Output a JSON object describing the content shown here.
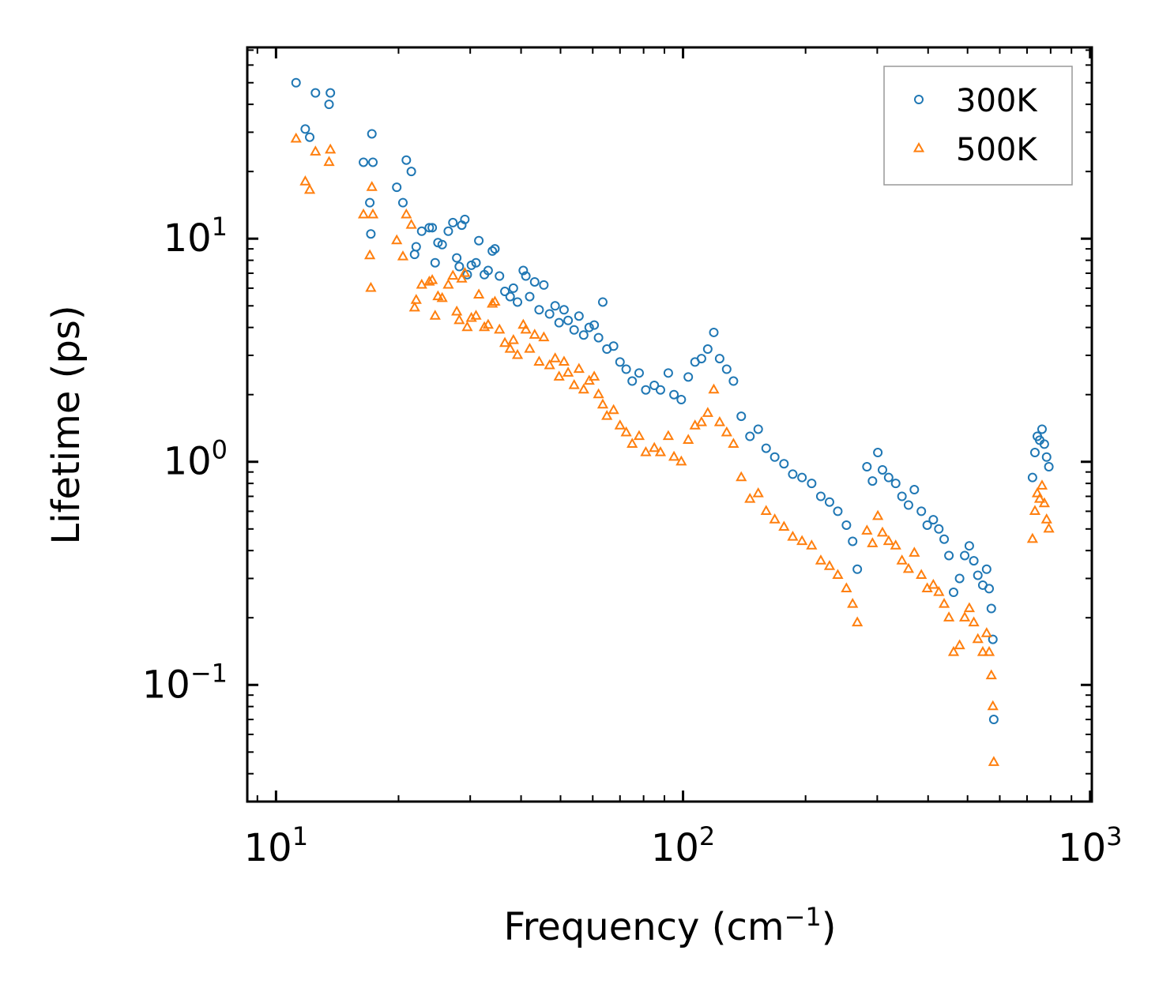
{
  "chart_data": {
    "type": "scatter",
    "xscale": "log",
    "yscale": "log",
    "xlabel": "Frequency (cm",
    "xlabel_sup": "−1",
    "xlabel_end": ")",
    "ylabel": "Lifetime (ps)",
    "xlim": [
      8.5,
      1010
    ],
    "ylim": [
      0.03,
      72
    ],
    "xticks": [
      {
        "value": 10,
        "base": "10",
        "exp": "1"
      },
      {
        "value": 100,
        "base": "10",
        "exp": "2"
      },
      {
        "value": 1000,
        "base": "10",
        "exp": "3"
      }
    ],
    "yticks": [
      {
        "value": 0.1,
        "base": "10",
        "exp": "−1"
      },
      {
        "value": 1,
        "base": "10",
        "exp": "0"
      },
      {
        "value": 10,
        "base": "10",
        "exp": "1"
      }
    ],
    "legend": {
      "position": "top-right"
    },
    "series": [
      {
        "name": "300K",
        "marker": "circle",
        "color": "#1f77b4",
        "points": [
          [
            11.2,
            50
          ],
          [
            11.8,
            31
          ],
          [
            12.1,
            28.5
          ],
          [
            12.5,
            45
          ],
          [
            13.5,
            40
          ],
          [
            13.6,
            45
          ],
          [
            16.4,
            22
          ],
          [
            17.0,
            14.5
          ],
          [
            17.1,
            10.5
          ],
          [
            17.2,
            29.5
          ],
          [
            17.3,
            22
          ],
          [
            19.8,
            17
          ],
          [
            20.5,
            14.5
          ],
          [
            20.9,
            22.5
          ],
          [
            21.5,
            20
          ],
          [
            21.9,
            8.5
          ],
          [
            22.1,
            9.2
          ],
          [
            22.8,
            10.8
          ],
          [
            23.8,
            11.2
          ],
          [
            24.2,
            11.2
          ],
          [
            24.6,
            7.8
          ],
          [
            25.0,
            9.6
          ],
          [
            25.6,
            9.4
          ],
          [
            26.5,
            10.8
          ],
          [
            27.2,
            11.8
          ],
          [
            27.8,
            8.2
          ],
          [
            28.2,
            7.5
          ],
          [
            28.6,
            11.5
          ],
          [
            29.1,
            12.2
          ],
          [
            29.5,
            6.9
          ],
          [
            30.2,
            7.6
          ],
          [
            31.0,
            7.8
          ],
          [
            31.5,
            9.8
          ],
          [
            32.5,
            6.9
          ],
          [
            33.2,
            7.2
          ],
          [
            34.0,
            8.8
          ],
          [
            34.5,
            9.0
          ],
          [
            35.4,
            6.8
          ],
          [
            36.5,
            5.8
          ],
          [
            37.6,
            5.5
          ],
          [
            38.3,
            6.0
          ],
          [
            39.2,
            5.2
          ],
          [
            40.5,
            7.2
          ],
          [
            41.1,
            6.8
          ],
          [
            42.0,
            5.5
          ],
          [
            43.2,
            6.4
          ],
          [
            44.3,
            4.8
          ],
          [
            45.5,
            6.2
          ],
          [
            47.0,
            4.6
          ],
          [
            48.5,
            5.0
          ],
          [
            49.6,
            4.2
          ],
          [
            51.0,
            4.8
          ],
          [
            52.2,
            4.3
          ],
          [
            54.0,
            3.9
          ],
          [
            55.5,
            4.5
          ],
          [
            57.0,
            3.7
          ],
          [
            58.8,
            4.0
          ],
          [
            60.5,
            4.1
          ],
          [
            62.0,
            3.6
          ],
          [
            63.5,
            5.2
          ],
          [
            65.0,
            3.2
          ],
          [
            67.5,
            3.3
          ],
          [
            70.0,
            2.8
          ],
          [
            72.5,
            2.6
          ],
          [
            75.0,
            2.3
          ],
          [
            78.0,
            2.5
          ],
          [
            81.0,
            2.1
          ],
          [
            85.0,
            2.2
          ],
          [
            88.0,
            2.1
          ],
          [
            92.0,
            2.5
          ],
          [
            95.0,
            2.0
          ],
          [
            99.0,
            1.9
          ],
          [
            103.0,
            2.4
          ],
          [
            107.0,
            2.8
          ],
          [
            111.0,
            2.9
          ],
          [
            115.0,
            3.2
          ],
          [
            119.0,
            3.8
          ],
          [
            123.0,
            2.9
          ],
          [
            128.0,
            2.6
          ],
          [
            133.0,
            2.3
          ],
          [
            139.0,
            1.6
          ],
          [
            146.0,
            1.3
          ],
          [
            153.0,
            1.4
          ],
          [
            160.0,
            1.15
          ],
          [
            168.0,
            1.05
          ],
          [
            177.0,
            0.98
          ],
          [
            186.0,
            0.88
          ],
          [
            196.0,
            0.85
          ],
          [
            207.0,
            0.8
          ],
          [
            218.0,
            0.7
          ],
          [
            229.0,
            0.66
          ],
          [
            240.0,
            0.6
          ],
          [
            252.0,
            0.52
          ],
          [
            261.0,
            0.44
          ],
          [
            268.0,
            0.33
          ],
          [
            283.0,
            0.95
          ],
          [
            292.0,
            0.82
          ],
          [
            301.0,
            1.1
          ],
          [
            309.0,
            0.92
          ],
          [
            320.0,
            0.85
          ],
          [
            333.0,
            0.8
          ],
          [
            345.0,
            0.7
          ],
          [
            358.0,
            0.64
          ],
          [
            370.0,
            0.75
          ],
          [
            385.0,
            0.6
          ],
          [
            398.0,
            0.52
          ],
          [
            412.0,
            0.55
          ],
          [
            425.0,
            0.5
          ],
          [
            438.0,
            0.45
          ],
          [
            450.0,
            0.38
          ],
          [
            462.0,
            0.26
          ],
          [
            478.0,
            0.3
          ],
          [
            492.0,
            0.38
          ],
          [
            505.0,
            0.42
          ],
          [
            518.0,
            0.36
          ],
          [
            530.0,
            0.31
          ],
          [
            545.0,
            0.28
          ],
          [
            557.0,
            0.33
          ],
          [
            565.0,
            0.27
          ],
          [
            572.0,
            0.22
          ],
          [
            577.0,
            0.16
          ],
          [
            580.0,
            0.07
          ],
          [
            722.0,
            0.85
          ],
          [
            732.0,
            1.1
          ],
          [
            742.0,
            1.3
          ],
          [
            752.0,
            1.25
          ],
          [
            762.0,
            1.4
          ],
          [
            772.0,
            1.2
          ],
          [
            782.0,
            1.05
          ],
          [
            792.0,
            0.95
          ]
        ]
      },
      {
        "name": "500K",
        "marker": "triangle",
        "color": "#ff7f0e",
        "points": [
          [
            11.2,
            28
          ],
          [
            11.8,
            18
          ],
          [
            12.1,
            16.5
          ],
          [
            12.5,
            24.5
          ],
          [
            13.5,
            22
          ],
          [
            13.6,
            25
          ],
          [
            16.4,
            12.8
          ],
          [
            17.0,
            8.4
          ],
          [
            17.1,
            6.0
          ],
          [
            17.2,
            17
          ],
          [
            17.3,
            12.8
          ],
          [
            19.8,
            9.8
          ],
          [
            20.5,
            8.3
          ],
          [
            20.9,
            12.8
          ],
          [
            21.5,
            11.5
          ],
          [
            21.9,
            4.9
          ],
          [
            22.1,
            5.3
          ],
          [
            22.8,
            6.2
          ],
          [
            23.8,
            6.4
          ],
          [
            24.2,
            6.5
          ],
          [
            24.6,
            4.5
          ],
          [
            25.0,
            5.5
          ],
          [
            25.6,
            5.4
          ],
          [
            26.5,
            6.2
          ],
          [
            27.2,
            6.8
          ],
          [
            27.8,
            4.7
          ],
          [
            28.2,
            4.3
          ],
          [
            28.6,
            6.6
          ],
          [
            29.1,
            7.0
          ],
          [
            29.5,
            4.0
          ],
          [
            30.2,
            4.4
          ],
          [
            31.0,
            4.5
          ],
          [
            31.5,
            5.6
          ],
          [
            32.5,
            4.0
          ],
          [
            33.2,
            4.1
          ],
          [
            34.0,
            5.1
          ],
          [
            34.5,
            5.2
          ],
          [
            35.4,
            3.9
          ],
          [
            36.5,
            3.4
          ],
          [
            37.6,
            3.2
          ],
          [
            38.3,
            3.5
          ],
          [
            39.2,
            3.0
          ],
          [
            40.5,
            4.1
          ],
          [
            41.1,
            3.9
          ],
          [
            42.0,
            3.2
          ],
          [
            43.2,
            3.7
          ],
          [
            44.3,
            2.8
          ],
          [
            45.5,
            3.6
          ],
          [
            47.0,
            2.7
          ],
          [
            48.5,
            2.9
          ],
          [
            49.6,
            2.4
          ],
          [
            51.0,
            2.8
          ],
          [
            52.2,
            2.5
          ],
          [
            54.0,
            2.2
          ],
          [
            55.5,
            2.6
          ],
          [
            57.0,
            2.1
          ],
          [
            58.8,
            2.3
          ],
          [
            60.5,
            2.4
          ],
          [
            62.0,
            2.0
          ],
          [
            63.5,
            1.8
          ],
          [
            65.0,
            1.6
          ],
          [
            67.5,
            1.7
          ],
          [
            70.0,
            1.45
          ],
          [
            72.5,
            1.35
          ],
          [
            75.0,
            1.2
          ],
          [
            78.0,
            1.3
          ],
          [
            81.0,
            1.1
          ],
          [
            85.0,
            1.15
          ],
          [
            88.0,
            1.1
          ],
          [
            92.0,
            1.3
          ],
          [
            95.0,
            1.05
          ],
          [
            99.0,
            1.0
          ],
          [
            103.0,
            1.25
          ],
          [
            107.0,
            1.45
          ],
          [
            111.0,
            1.5
          ],
          [
            115.0,
            1.65
          ],
          [
            119.0,
            2.1
          ],
          [
            123.0,
            1.5
          ],
          [
            128.0,
            1.35
          ],
          [
            133.0,
            1.2
          ],
          [
            139.0,
            0.85
          ],
          [
            146.0,
            0.68
          ],
          [
            153.0,
            0.72
          ],
          [
            160.0,
            0.6
          ],
          [
            168.0,
            0.55
          ],
          [
            177.0,
            0.51
          ],
          [
            186.0,
            0.46
          ],
          [
            196.0,
            0.44
          ],
          [
            207.0,
            0.42
          ],
          [
            218.0,
            0.36
          ],
          [
            229.0,
            0.34
          ],
          [
            240.0,
            0.31
          ],
          [
            252.0,
            0.27
          ],
          [
            261.0,
            0.23
          ],
          [
            268.0,
            0.19
          ],
          [
            283.0,
            0.49
          ],
          [
            292.0,
            0.43
          ],
          [
            301.0,
            0.57
          ],
          [
            309.0,
            0.48
          ],
          [
            320.0,
            0.44
          ],
          [
            333.0,
            0.42
          ],
          [
            345.0,
            0.36
          ],
          [
            358.0,
            0.33
          ],
          [
            370.0,
            0.39
          ],
          [
            385.0,
            0.31
          ],
          [
            398.0,
            0.27
          ],
          [
            412.0,
            0.28
          ],
          [
            425.0,
            0.26
          ],
          [
            438.0,
            0.23
          ],
          [
            450.0,
            0.2
          ],
          [
            462.0,
            0.14
          ],
          [
            478.0,
            0.15
          ],
          [
            492.0,
            0.2
          ],
          [
            505.0,
            0.22
          ],
          [
            518.0,
            0.19
          ],
          [
            530.0,
            0.16
          ],
          [
            545.0,
            0.14
          ],
          [
            557.0,
            0.17
          ],
          [
            565.0,
            0.14
          ],
          [
            572.0,
            0.11
          ],
          [
            577.0,
            0.08
          ],
          [
            580.0,
            0.045
          ],
          [
            722.0,
            0.45
          ],
          [
            732.0,
            0.6
          ],
          [
            742.0,
            0.72
          ],
          [
            752.0,
            0.68
          ],
          [
            762.0,
            0.78
          ],
          [
            772.0,
            0.65
          ],
          [
            782.0,
            0.55
          ],
          [
            792.0,
            0.5
          ]
        ]
      }
    ]
  }
}
